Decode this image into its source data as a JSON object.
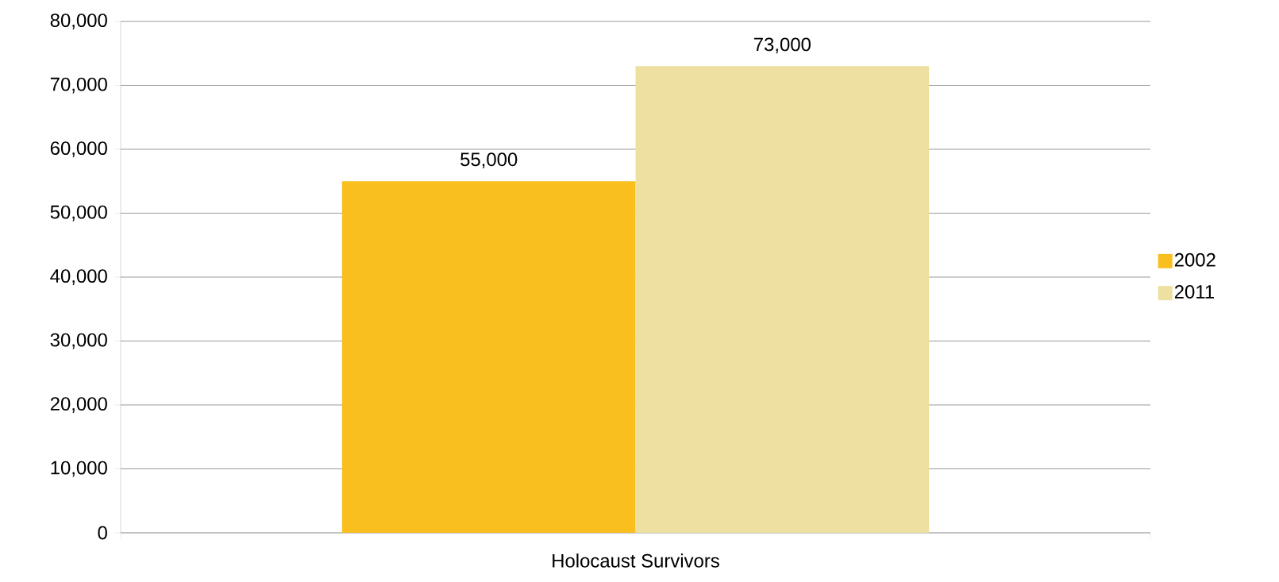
{
  "chart_data": {
    "type": "bar",
    "categories": [
      "Holocaust Survivors"
    ],
    "series": [
      {
        "name": "2002",
        "color": "#f9bf1f",
        "values": [
          55000
        ],
        "value_labels": [
          "55,000"
        ]
      },
      {
        "name": "2011",
        "color": "#eee0a0",
        "values": [
          73000
        ],
        "value_labels": [
          "73,000"
        ]
      }
    ],
    "ylim": [
      0,
      80000
    ],
    "yticks": [
      {
        "value": 0,
        "label": "0"
      },
      {
        "value": 10000,
        "label": "10,000"
      },
      {
        "value": 20000,
        "label": "20,000"
      },
      {
        "value": 30000,
        "label": "30,000"
      },
      {
        "value": 40000,
        "label": "40,000"
      },
      {
        "value": 50000,
        "label": "50,000"
      },
      {
        "value": 60000,
        "label": "60,000"
      },
      {
        "value": 70000,
        "label": "70,000"
      },
      {
        "value": 80000,
        "label": "80,000"
      }
    ],
    "grid": "y",
    "legend": "right"
  }
}
